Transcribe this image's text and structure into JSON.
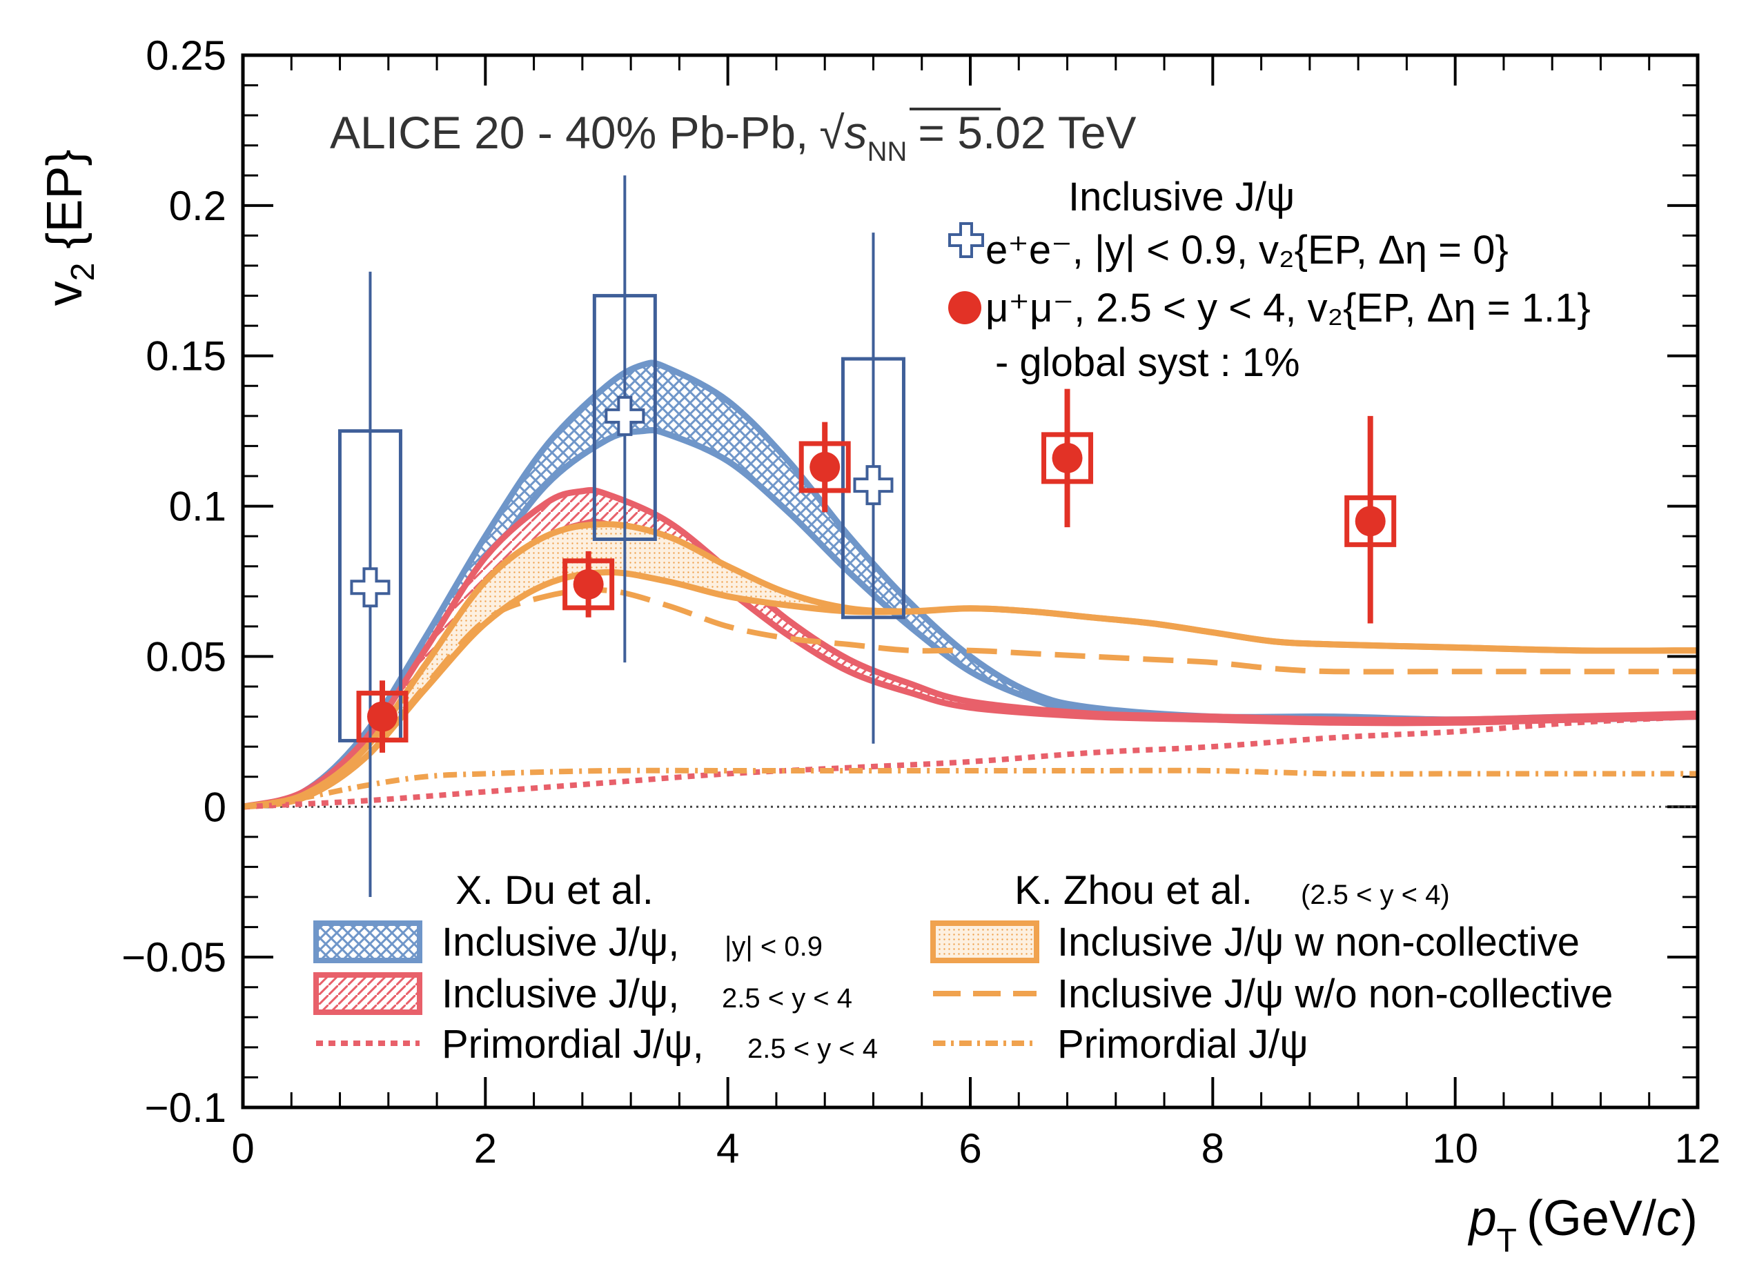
{
  "chart_data": {
    "type": "scatter",
    "title": "ALICE 20 - 40% Pb-Pb, √s_NN = 5.02 TeV",
    "title_parts": {
      "experiment": "ALICE 20 - 40% Pb-Pb,",
      "sqrt": "√",
      "s": "s",
      "nn": "NN",
      "energy": "= 5.02 TeV"
    },
    "xlabel": "p_T (GeV/c)",
    "xlabel_parts": {
      "p": "p",
      "sub": "T",
      "unit": "(GeV/",
      "c": "c",
      "close": ")"
    },
    "ylabel": "v_2 {EP}",
    "ylabel_parts": {
      "v": "v",
      "sub": "2",
      "rest": " {EP}"
    },
    "xlim": [
      0,
      12
    ],
    "ylim": [
      -0.1,
      0.25
    ],
    "x_ticks": [
      0,
      2,
      4,
      6,
      8,
      10,
      12
    ],
    "x_tick_labels": [
      "0",
      "2",
      "4",
      "6",
      "8",
      "10",
      "12"
    ],
    "y_ticks": [
      -0.1,
      -0.05,
      0,
      0.05,
      0.1,
      0.15,
      0.2,
      0.25
    ],
    "y_tick_labels": [
      "−0.1",
      "−0.05",
      "0",
      "0.05",
      "0.1",
      "0.15",
      "0.2",
      "0.25"
    ],
    "colors": {
      "blue": "#6f96c9",
      "blue_data": "#3f5f99",
      "red": "#e8606a",
      "red_data": "#e23226",
      "orange": "#f0a24e"
    },
    "data_legend": {
      "header": "Inclusive J/ψ",
      "ee": "e⁺e⁻, |y| < 0.9, v₂{EP, Δη = 0}",
      "mumu": "μ⁺μ⁻, 2.5 < y < 4, v₂{EP, Δη = 1.1}",
      "syst": "- global syst : 1%"
    },
    "series": [
      {
        "name": "e+e-, |y| < 0.9",
        "kind": "data",
        "points": [
          {
            "x": 1.05,
            "y": 0.073,
            "stat_lo": -0.03,
            "stat_hi": 0.178,
            "syst_lo": 0.022,
            "syst_hi": 0.125
          },
          {
            "x": 3.15,
            "y": 0.13,
            "stat_lo": 0.048,
            "stat_hi": 0.21,
            "syst_lo": 0.089,
            "syst_hi": 0.17
          },
          {
            "x": 5.2,
            "y": 0.107,
            "stat_lo": 0.021,
            "stat_hi": 0.191,
            "syst_lo": 0.063,
            "syst_hi": 0.149
          }
        ]
      },
      {
        "name": "mu+mu-, 2.5 < y < 4",
        "kind": "data",
        "points": [
          {
            "x": 1.15,
            "y": 0.03,
            "stat_lo": 0.018,
            "stat_hi": 0.042
          },
          {
            "x": 2.85,
            "y": 0.074,
            "stat_lo": 0.063,
            "stat_hi": 0.085
          },
          {
            "x": 4.8,
            "y": 0.113,
            "stat_lo": 0.098,
            "stat_hi": 0.128
          },
          {
            "x": 6.8,
            "y": 0.116,
            "stat_lo": 0.093,
            "stat_hi": 0.139
          },
          {
            "x": 9.3,
            "y": 0.095,
            "stat_lo": 0.061,
            "stat_hi": 0.13
          }
        ]
      },
      {
        "name": "X. Du et al. Inclusive J/ψ, |y| < 0.9 (band)",
        "kind": "band",
        "x": [
          0,
          0.5,
          1.0,
          1.5,
          2.0,
          2.5,
          3.0,
          3.3,
          3.5,
          4.0,
          4.5,
          5.0,
          5.5,
          6.0,
          6.5,
          7.0,
          8.0,
          9.0,
          10.0,
          11.0,
          12.0
        ],
        "lower": [
          0,
          0.004,
          0.021,
          0.05,
          0.08,
          0.107,
          0.122,
          0.125,
          0.124,
          0.115,
          0.098,
          0.078,
          0.06,
          0.045,
          0.036,
          0.031,
          0.029,
          0.029,
          0.029,
          0.029,
          0.03
        ],
        "upper": [
          0,
          0.005,
          0.024,
          0.056,
          0.09,
          0.12,
          0.14,
          0.147,
          0.146,
          0.135,
          0.115,
          0.09,
          0.068,
          0.05,
          0.038,
          0.033,
          0.03,
          0.03,
          0.029,
          0.03,
          0.03
        ]
      },
      {
        "name": "X. Du et al. Inclusive J/ψ, 2.5 < y < 4 (band)",
        "kind": "band",
        "x": [
          0,
          0.5,
          1.0,
          1.5,
          2.0,
          2.5,
          2.8,
          3.0,
          3.5,
          4.0,
          4.5,
          5.0,
          5.5,
          6.0,
          7.0,
          8.0,
          9.0,
          10.0,
          11.0,
          12.0
        ],
        "lower": [
          0,
          0.004,
          0.019,
          0.046,
          0.072,
          0.089,
          0.094,
          0.094,
          0.086,
          0.072,
          0.057,
          0.045,
          0.038,
          0.033,
          0.03,
          0.029,
          0.028,
          0.028,
          0.029,
          0.03
        ],
        "upper": [
          0,
          0.005,
          0.022,
          0.052,
          0.083,
          0.101,
          0.105,
          0.104,
          0.095,
          0.079,
          0.062,
          0.049,
          0.041,
          0.035,
          0.031,
          0.03,
          0.029,
          0.029,
          0.03,
          0.031
        ]
      },
      {
        "name": "X. Du et al. Primordial J/ψ, 2.5 < y < 4",
        "kind": "dotted",
        "x": [
          0,
          1,
          2,
          3,
          4,
          5,
          6,
          7,
          8,
          9,
          10,
          11,
          12
        ],
        "y": [
          0,
          0.002,
          0.005,
          0.008,
          0.011,
          0.013,
          0.015,
          0.018,
          0.02,
          0.023,
          0.025,
          0.028,
          0.03
        ]
      },
      {
        "name": "K. Zhou et al. Inclusive J/ψ w non-collective (band)",
        "kind": "band",
        "x": [
          0,
          0.5,
          1.0,
          1.5,
          2.0,
          2.5,
          3.0,
          3.5,
          4.0,
          4.5,
          5.0,
          5.5,
          6.0,
          6.5,
          7.0,
          7.5,
          8.0,
          8.5,
          9.0,
          10.0,
          11.0,
          12.0
        ],
        "lower": [
          0,
          0.003,
          0.016,
          0.039,
          0.061,
          0.074,
          0.078,
          0.075,
          0.07,
          0.067,
          0.065,
          0.065,
          0.066,
          0.065,
          0.063,
          0.061,
          0.058,
          0.055,
          0.054,
          0.053,
          0.052,
          0.052
        ],
        "upper": [
          0,
          0.004,
          0.019,
          0.047,
          0.075,
          0.09,
          0.094,
          0.09,
          0.08,
          0.071,
          0.066,
          0.065,
          0.066,
          0.065,
          0.063,
          0.061,
          0.058,
          0.055,
          0.054,
          0.053,
          0.052,
          0.052
        ]
      },
      {
        "name": "K. Zhou et al. Inclusive J/ψ w/o non-collective",
        "kind": "dashed",
        "x": [
          0.5,
          1.0,
          1.5,
          2.0,
          2.5,
          3.0,
          3.5,
          4.0,
          4.5,
          5.0,
          5.5,
          6.0,
          6.5,
          7.0,
          7.5,
          8.0,
          8.5,
          9.0,
          10.0,
          11.0,
          12.0
        ],
        "y": [
          0.003,
          0.016,
          0.04,
          0.062,
          0.07,
          0.072,
          0.067,
          0.06,
          0.056,
          0.054,
          0.052,
          0.052,
          0.051,
          0.05,
          0.049,
          0.048,
          0.046,
          0.045,
          0.045,
          0.045,
          0.045
        ]
      },
      {
        "name": "K. Zhou et al. Primordial J/ψ",
        "kind": "dashdot",
        "x": [
          0,
          0.5,
          1.0,
          1.5,
          2.0,
          3.0,
          4.0,
          5.0,
          6.0,
          7.0,
          8.0,
          9.0,
          10.0,
          11.0,
          12.0
        ],
        "y": [
          0,
          0.003,
          0.007,
          0.01,
          0.011,
          0.012,
          0.012,
          0.012,
          0.012,
          0.012,
          0.012,
          0.011,
          0.011,
          0.011,
          0.011
        ]
      }
    ],
    "model_legend": {
      "du_header": "X. Du et al.",
      "zhou_header": "K. Zhou et al.",
      "zhou_range": "(2.5 < y < 4)",
      "du_items": [
        {
          "label": "Inclusive J/ψ,",
          "range": "|y| < 0.9"
        },
        {
          "label": "Inclusive J/ψ,",
          "range": "2.5 < y < 4"
        },
        {
          "label": "Primordial J/ψ,",
          "range": "2.5 < y < 4"
        }
      ],
      "zhou_items": [
        {
          "label": "Inclusive J/ψ w non-collective"
        },
        {
          "label": "Inclusive J/ψ w/o non-collective"
        },
        {
          "label": "Primordial J/ψ"
        }
      ]
    }
  }
}
